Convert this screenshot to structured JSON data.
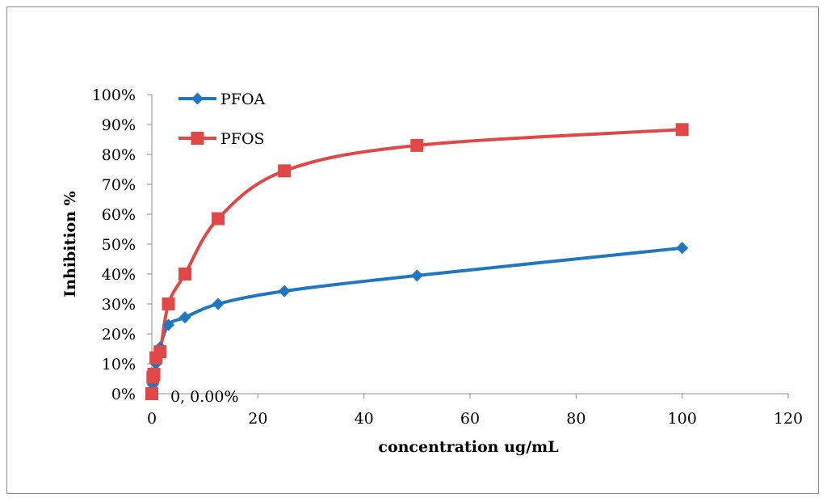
{
  "chart_data": {
    "type": "line",
    "title": "",
    "xlabel": "concentration  ug/mL",
    "ylabel": "Inhibition  %",
    "xlim": [
      0,
      120
    ],
    "ylim": [
      0,
      100
    ],
    "x_ticks": [
      0,
      20,
      40,
      60,
      80,
      100,
      120
    ],
    "x_tick_labels": [
      "0",
      "20",
      "40",
      "60",
      "80",
      "100",
      "120"
    ],
    "y_ticks": [
      0,
      10,
      20,
      30,
      40,
      50,
      60,
      70,
      80,
      90,
      100
    ],
    "y_tick_labels": [
      "0%",
      "10%",
      "20%",
      "30%",
      "40%",
      "50%",
      "60%",
      "70%",
      "80%",
      "90%",
      "100%"
    ],
    "grid": false,
    "legend_position": "top-left",
    "smooth": true,
    "series": [
      {
        "name": "PFOA",
        "color": "#1f77c0",
        "marker": "diamond",
        "x": [
          0,
          0.2,
          0.39,
          0.78,
          1.56,
          3.13,
          6.25,
          12.5,
          25,
          50,
          100
        ],
        "y": [
          0,
          3,
          6,
          10,
          15.5,
          23,
          25.5,
          30,
          34.3,
          39.5,
          48.7
        ]
      },
      {
        "name": "PFOS",
        "color": "#e04848",
        "marker": "square",
        "x": [
          0,
          0.2,
          0.39,
          0.78,
          1.56,
          3.13,
          6.25,
          12.5,
          25,
          50,
          100
        ],
        "y": [
          0,
          5.5,
          6.5,
          12,
          14,
          30,
          40,
          58.5,
          74.5,
          83,
          88.3
        ]
      }
    ],
    "annotations": [
      {
        "text": "0, 0.00%",
        "x": 0,
        "y": 0
      }
    ]
  }
}
